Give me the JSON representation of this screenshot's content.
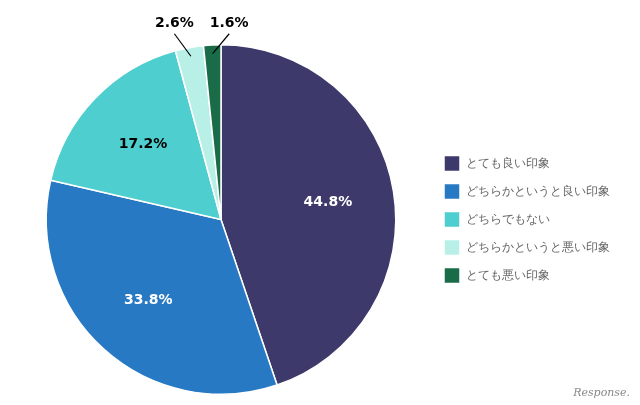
{
  "chart_data": {
    "type": "pie",
    "categories": [
      "とても良い印象",
      "どちらかというと良い印象",
      "どちらでもない",
      "どちらかというと悪い印象",
      "とても悪い印象"
    ],
    "values": [
      44.8,
      33.8,
      17.2,
      2.6,
      1.6
    ],
    "value_labels": [
      "44.8%",
      "33.8%",
      "17.2%",
      "2.6%",
      "1.6%"
    ],
    "colors": [
      "#3d3a6b",
      "#2879c4",
      "#4ecece",
      "#b8f0e8",
      "#1a6b48"
    ],
    "data_labels": true,
    "legend": "right",
    "annotations": [
      "Response."
    ]
  }
}
